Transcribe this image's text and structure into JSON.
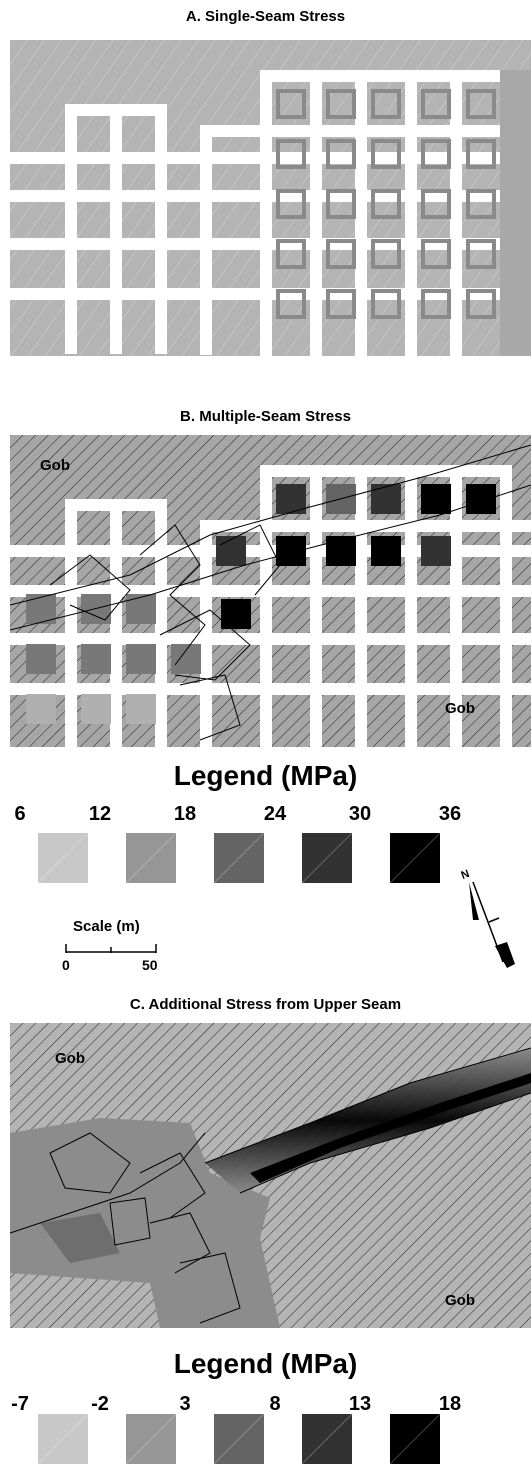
{
  "panels": {
    "a": {
      "title": "A.  Single-Seam Stress"
    },
    "b": {
      "title": "B.  Multiple-Seam Stress",
      "gob_labels": [
        "Gob",
        "Gob"
      ]
    },
    "c": {
      "title": "C.  Additional Stress from Upper Seam",
      "gob_labels": [
        "Gob",
        "Gob"
      ]
    }
  },
  "legend1": {
    "title": "Legend (MPa)",
    "ticks": [
      "6",
      "12",
      "18",
      "24",
      "30",
      "36"
    ],
    "colors": [
      "#c8c8c8",
      "#969696",
      "#646464",
      "#323232",
      "#000000"
    ]
  },
  "scale": {
    "title": "Scale (m)",
    "min": "0",
    "max": "50"
  },
  "legend2": {
    "title": "Legend (MPa)",
    "ticks": [
      "-7",
      "-2",
      "3",
      "8",
      "13",
      "18"
    ],
    "colors": [
      "#c8c8c8",
      "#969696",
      "#646464",
      "#323232",
      "#000000"
    ]
  }
}
